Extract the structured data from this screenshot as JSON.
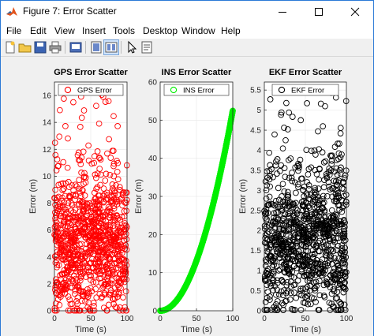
{
  "window": {
    "title": "Figure 7: Error Scatter",
    "minimize_icon": "minimize-icon",
    "maximize_icon": "maximize-icon",
    "close_icon": "close-icon",
    "accent": "#2b79d6"
  },
  "menu": [
    "File",
    "Edit",
    "View",
    "Insert",
    "Tools",
    "Desktop",
    "Window",
    "Help"
  ],
  "toolbar": [
    "new-figure-icon",
    "open-file-icon",
    "save-icon",
    "print-icon",
    "print-preview-icon",
    "toggle-plot-tools-icon",
    "show-plot-tools-icon",
    "edit-plot-arrow-icon",
    "open-property-inspector-icon"
  ],
  "chart_data": [
    {
      "type": "scatter",
      "title": "GPS Error Scatter",
      "xlabel": "Time (s)",
      "ylabel": "Error (m)",
      "xlim": [
        0,
        100
      ],
      "ylim": [
        0,
        17
      ],
      "xticks": [
        0,
        50,
        100
      ],
      "yticks": [
        0,
        2,
        4,
        6,
        8,
        10,
        12,
        14,
        16
      ],
      "grid": true,
      "legend": {
        "label": "GPS Error",
        "position": "top",
        "marker": "circle"
      },
      "series": [
        {
          "name": "GPS Error",
          "color": "#ff0000",
          "marker": "circle-open",
          "n_points": 1000,
          "x_range": [
            0,
            100
          ],
          "y_range": [
            0,
            16.6
          ],
          "y_center": 5
        }
      ]
    },
    {
      "type": "scatter",
      "title": "INS Error Scatter",
      "xlabel": "Time (s)",
      "ylabel": "Error (m)",
      "xlim": [
        0,
        100
      ],
      "ylim": [
        0,
        60
      ],
      "xticks": [
        0,
        50,
        100
      ],
      "yticks": [
        0,
        10,
        20,
        30,
        40,
        50,
        60
      ],
      "grid": true,
      "legend": {
        "label": "INS Error",
        "position": "top",
        "marker": "circle"
      },
      "series": [
        {
          "name": "INS Error",
          "color": "#00ee00",
          "marker": "circle-open",
          "n_points": 1000,
          "x_range": [
            0,
            100
          ],
          "y_range": [
            0,
            52.5
          ],
          "shape": "quadratic"
        }
      ]
    },
    {
      "type": "scatter",
      "title": "EKF Error Scatter",
      "xlabel": "Time (s)",
      "ylabel": "Error (m)",
      "xlim": [
        0,
        100
      ],
      "ylim": [
        0,
        5.7
      ],
      "xticks": [
        0,
        50,
        100
      ],
      "yticks": [
        0,
        0.5,
        1,
        1.5,
        2,
        2.5,
        3,
        3.5,
        4,
        4.5,
        5,
        5.5
      ],
      "grid": true,
      "legend": {
        "label": "EKF Error",
        "position": "top",
        "marker": "circle"
      },
      "series": [
        {
          "name": "EKF Error",
          "color": "#000000",
          "marker": "circle-open",
          "n_points": 1000,
          "x_range": [
            0,
            100
          ],
          "y_range": [
            0,
            5.6
          ],
          "y_center": 1.7
        }
      ]
    }
  ]
}
